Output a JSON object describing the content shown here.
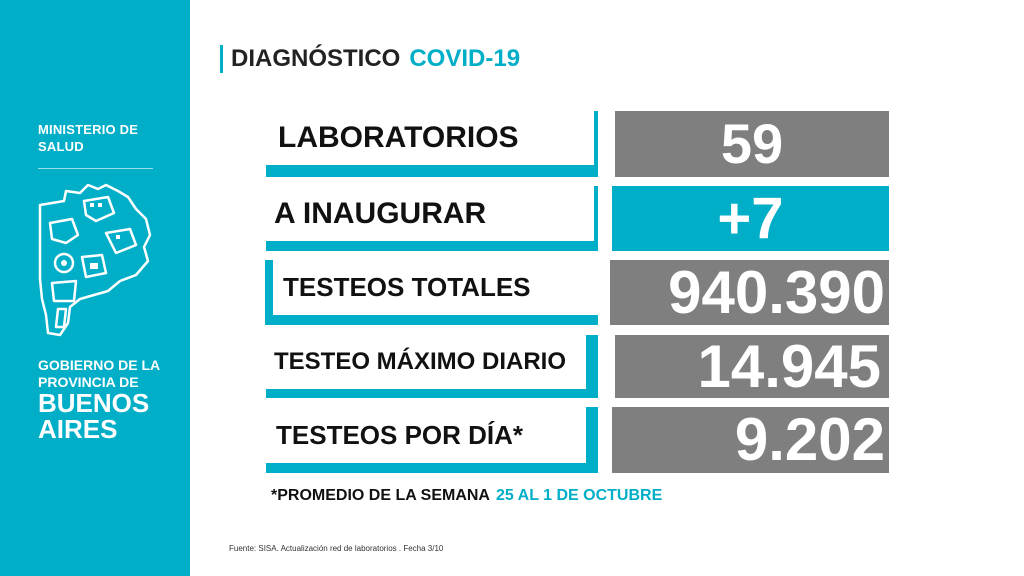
{
  "sidebar": {
    "ministerio_line1": "MINISTERIO DE",
    "ministerio_line2": "SALUD",
    "gov_line1": "GOBIERNO DE LA",
    "gov_line2": "PROVINCIA DE",
    "gov_line3": "BUENOS",
    "gov_line4": "AIRES",
    "logo_icon": "buenos-aires-province-map-icon"
  },
  "header": {
    "title_part1": "DIAGNÓSTICO",
    "title_part2": "COVID-19"
  },
  "rows": [
    {
      "label": "LABORATORIOS",
      "value": "59"
    },
    {
      "label": "A INAUGURAR",
      "value": "+7"
    },
    {
      "label": "TESTEOS TOTALES",
      "value": "940.390"
    },
    {
      "label": "TESTEO MÁXIMO DIARIO",
      "value": "14.945"
    },
    {
      "label": "TESTEOS POR DÍA*",
      "value": "9.202"
    }
  ],
  "footnote": {
    "text": "*PROMEDIO DE LA SEMANA",
    "highlight": "25 AL 1 DE OCTUBRE"
  },
  "source": "Fuente: SISA. Actualización red de laboratorios . Fecha 3/10",
  "colors": {
    "accent": "#00aec7",
    "value_box": "#7f7f7f",
    "text_dark": "#111111"
  }
}
